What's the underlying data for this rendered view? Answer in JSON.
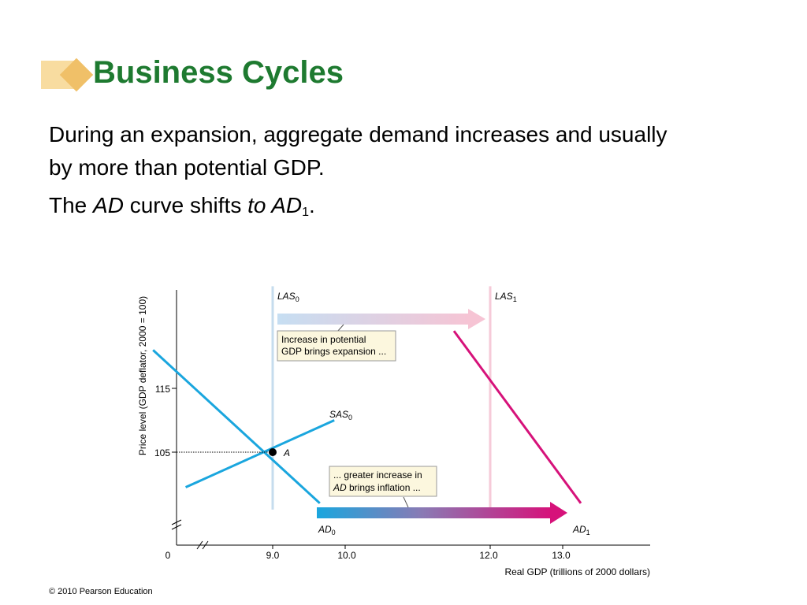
{
  "slide": {
    "title": "Business Cycles",
    "paragraph1": "During an expansion, aggregate demand increases and usually by more than potential GDP.",
    "paragraph2": {
      "the": "The ",
      "ad": "AD",
      "curve_shifts": " curve shifts ",
      "to_ad": "to AD",
      "sub": "1",
      "period": "."
    },
    "footer": "© 2010 Pearson Education"
  },
  "colors": {
    "title": "#1e7a30",
    "curve_blue": "#1aa6de",
    "curve_magenta": "#d6127a",
    "las0_line": "#c6dcee",
    "las1_line": "#f6cad8",
    "callout_bg": "#fcf7de"
  },
  "chart_data": {
    "type": "line",
    "xlabel": "Real GDP (trillions of 2000 dollars)",
    "ylabel": "Price level (GDP deflator, 2000 = 100)",
    "x_ticks": [
      "0",
      "9.0",
      "10.0",
      "12.0",
      "13.0"
    ],
    "y_ticks": [
      "115",
      "105"
    ],
    "series": [
      {
        "name": "LAS0",
        "label_main": "LAS",
        "label_sub": "0",
        "points": [
          [
            9.0,
            96
          ],
          [
            9.0,
            131
          ]
        ]
      },
      {
        "name": "LAS1",
        "label_main": "LAS",
        "label_sub": "1",
        "points": [
          [
            12.0,
            96
          ],
          [
            12.0,
            131
          ]
        ]
      },
      {
        "name": "SAS0",
        "label_main": "SAS",
        "label_sub": "0",
        "points": [
          [
            7.8,
            99.5
          ],
          [
            9.85,
            110
          ]
        ]
      },
      {
        "name": "AD0",
        "label_main": "AD",
        "label_sub": "0",
        "points": [
          [
            7.35,
            121
          ],
          [
            9.65,
            97
          ]
        ]
      },
      {
        "name": "AD1",
        "label_main": "AD",
        "label_sub": "1",
        "points": [
          [
            11.5,
            124
          ],
          [
            13.25,
            97
          ]
        ]
      }
    ],
    "equilibrium": {
      "label": "A",
      "x": 9.0,
      "y": 105
    },
    "annotations": [
      {
        "lines": [
          "Increase in potential",
          "GDP brings expansion ..."
        ]
      },
      {
        "lines": [
          "... greater increase in",
          "AD brings inflation ..."
        ],
        "italic_prefix": "AD"
      }
    ]
  }
}
